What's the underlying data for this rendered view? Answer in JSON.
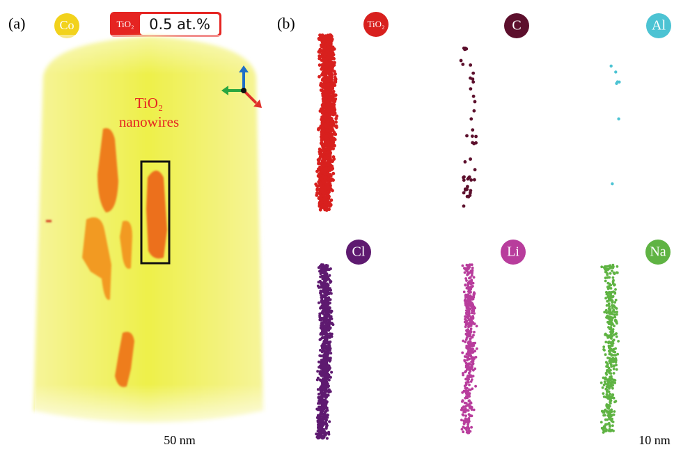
{
  "panel_a": {
    "label": "(a)",
    "element": "Co",
    "iso_badge": {
      "species": "TiO₂",
      "value": "0.5 at.%"
    },
    "annotation": [
      "TiO₂",
      "nanowires"
    ],
    "scale_bar": "50 nm"
  },
  "panel_b": {
    "label": "(b)",
    "elements": [
      "TiO₂",
      "C",
      "Al",
      "Cl",
      "Li",
      "Na"
    ],
    "scale_bar": "10 nm"
  }
}
